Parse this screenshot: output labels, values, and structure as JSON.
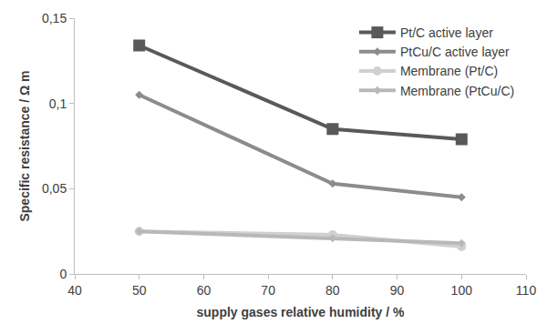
{
  "chart_data": {
    "type": "line",
    "x_label": "supply gases relative humidity / %",
    "y_label": "Specific resistance / Ω m",
    "x": [
      50,
      80,
      100
    ],
    "series": [
      {
        "name": "Pt/C active layer",
        "color": "#595959",
        "marker": "square",
        "line_style": "solid",
        "values": [
          0.134,
          0.085,
          0.079
        ]
      },
      {
        "name": "PtCu/C active layer",
        "color": "#8c8c8c",
        "marker": "diamond",
        "line_style": "solid",
        "values": [
          0.105,
          0.053,
          0.045
        ]
      },
      {
        "name": "Membrane (Pt/C)",
        "color": "#d0d0d0",
        "marker": "circle",
        "line_style": "solid",
        "values": [
          0.025,
          0.023,
          0.016
        ]
      },
      {
        "name": "Membrane (PtCu/C)",
        "color": "#b8b8b8",
        "marker": "diamond",
        "line_style": "solid",
        "values": [
          0.025,
          0.021,
          0.018
        ]
      }
    ],
    "xlim": [
      40,
      110
    ],
    "xticks": [
      40,
      50,
      60,
      70,
      80,
      90,
      100,
      110
    ],
    "ylim": [
      0,
      0.15
    ],
    "yticks": [
      0,
      {
        "value": 0.05,
        "label": "0,05"
      },
      {
        "value": 0.1,
        "label": "0,1"
      },
      {
        "value": 0.15,
        "label": "0,15"
      }
    ],
    "grid": false,
    "legend": "top right"
  }
}
